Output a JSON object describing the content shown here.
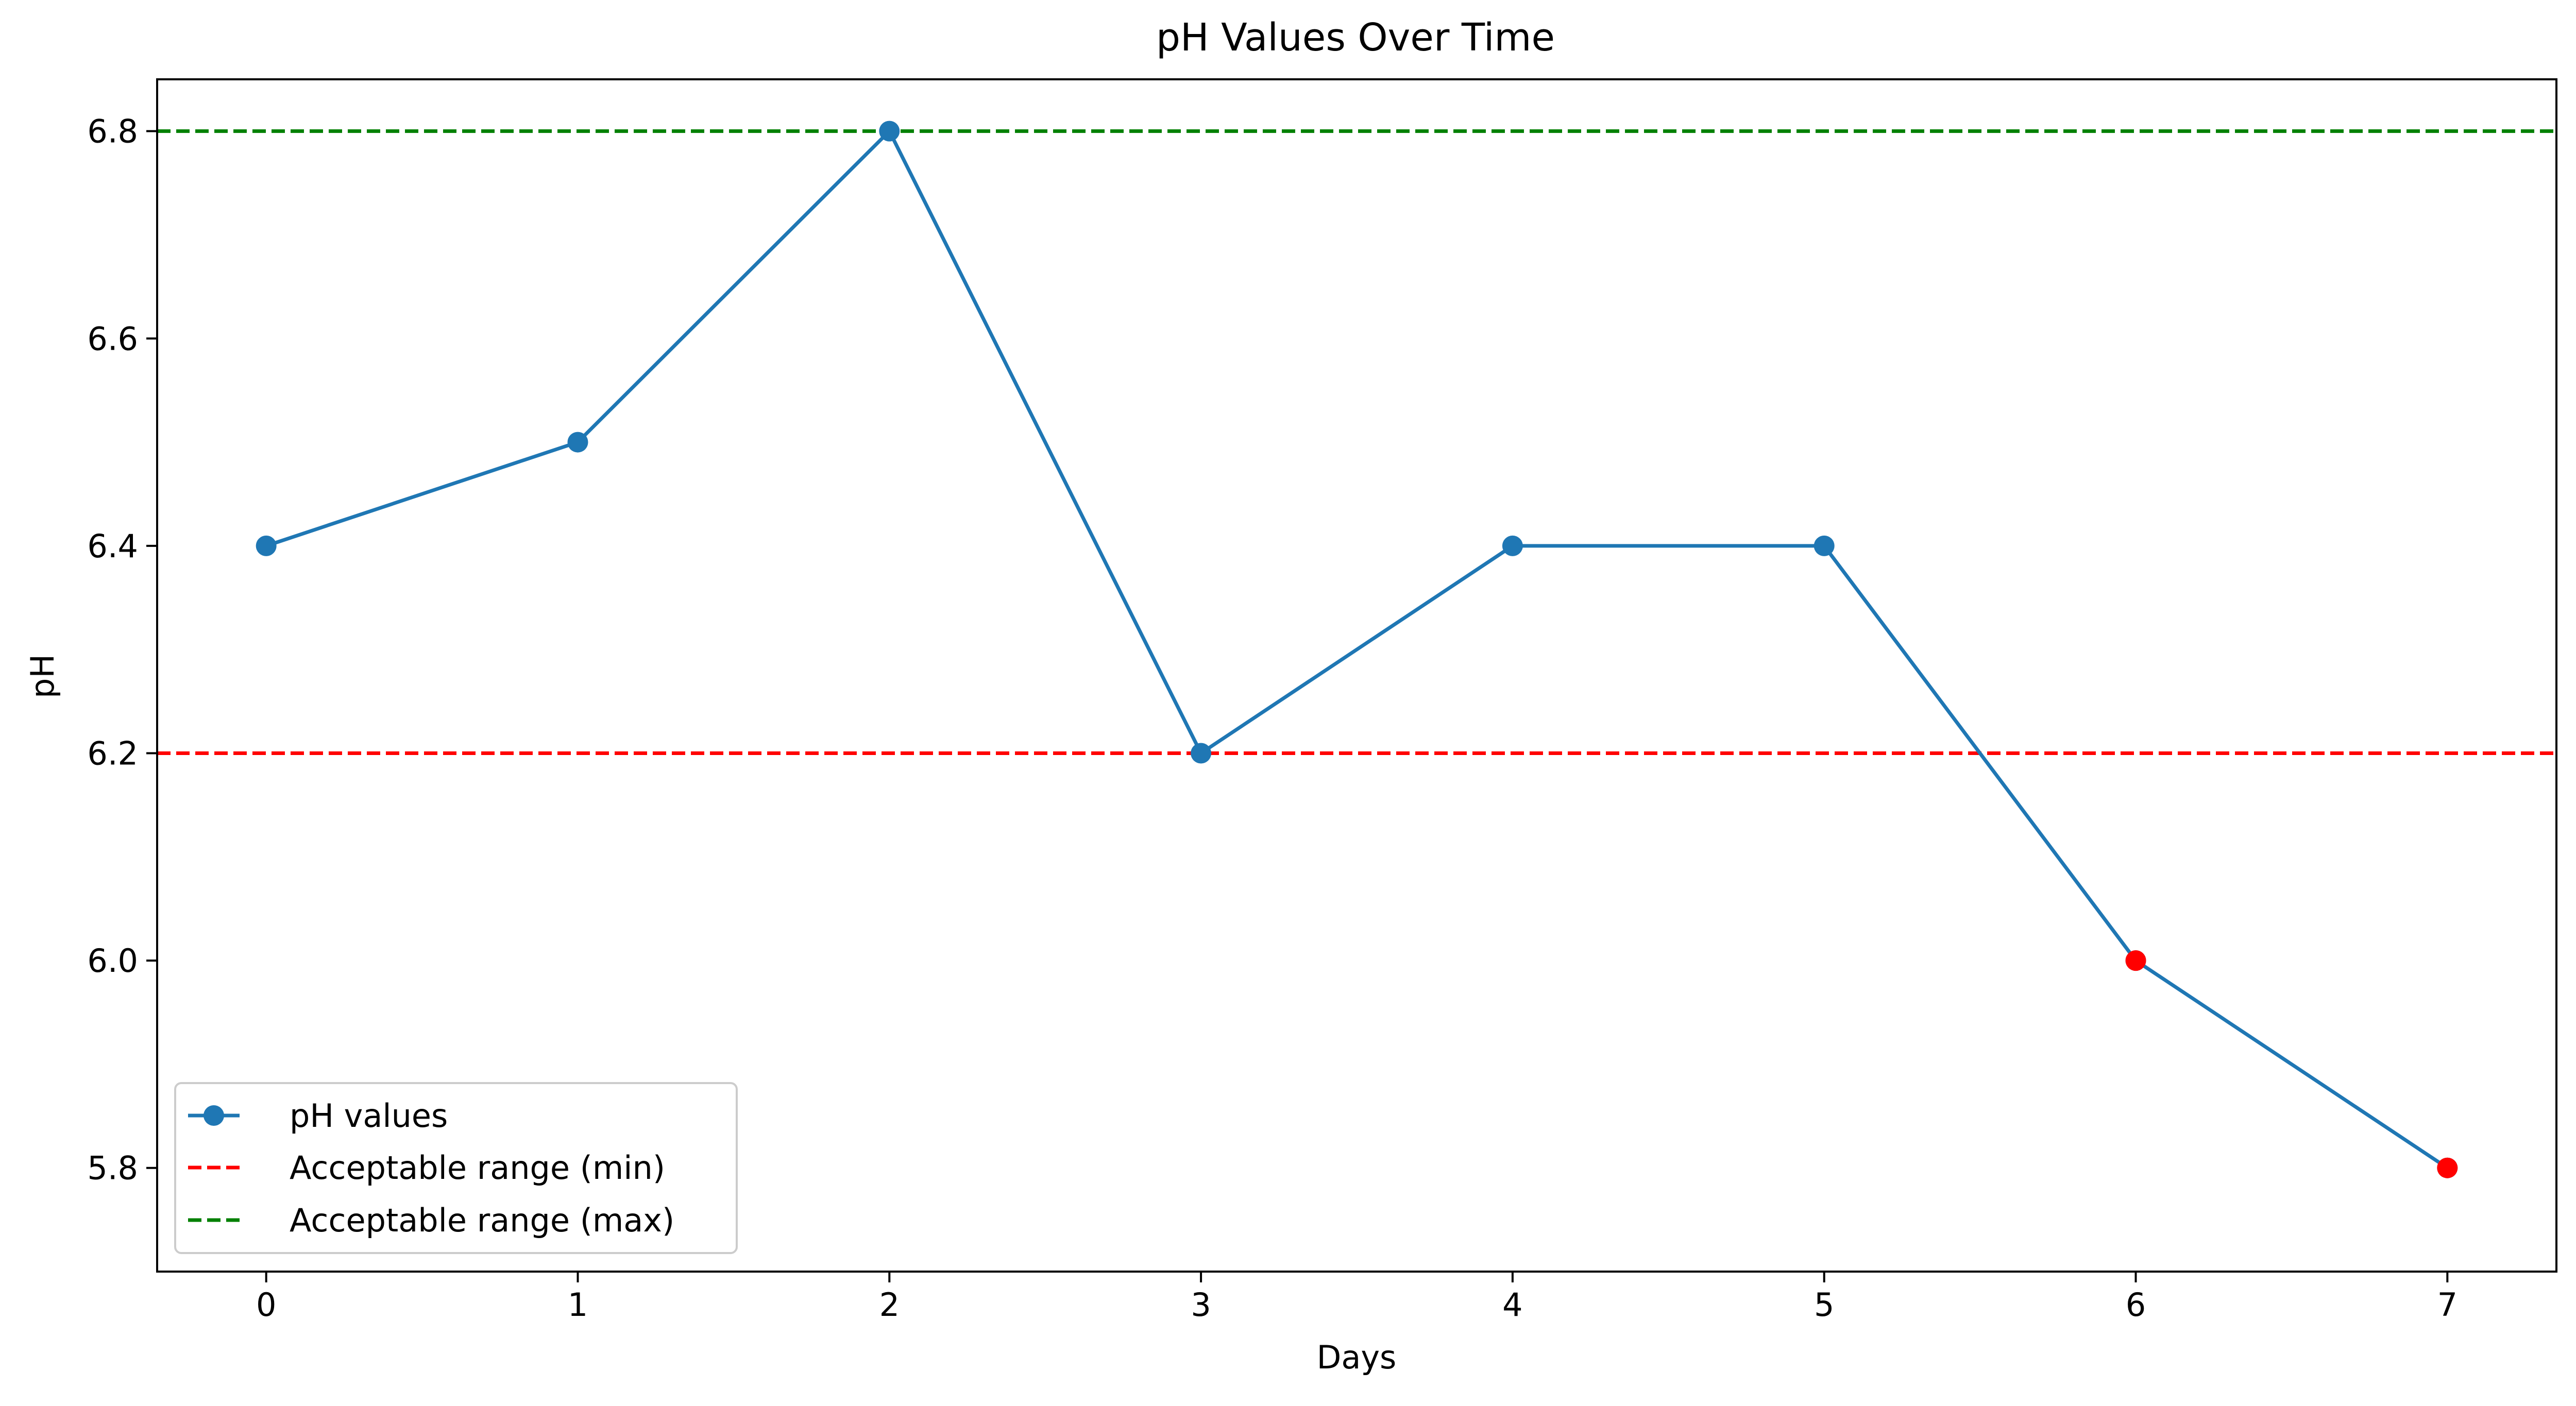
{
  "chart_data": {
    "type": "line",
    "title": "pH Values Over Time",
    "xlabel": "Days",
    "ylabel": "pH",
    "x": [
      0,
      1,
      2,
      3,
      4,
      5,
      6,
      7
    ],
    "xticks": [
      "0",
      "1",
      "2",
      "3",
      "4",
      "5",
      "6",
      "7"
    ],
    "yticks": [
      "5.8",
      "6.0",
      "6.2",
      "6.4",
      "6.6",
      "6.8"
    ],
    "xlim": [
      -0.35,
      7.35
    ],
    "ylim": [
      5.7,
      6.85
    ],
    "grid": false,
    "legend_position": "lower-left",
    "series": [
      {
        "name": "pH values",
        "values": [
          6.4,
          6.5,
          6.8,
          6.2,
          6.4,
          6.4,
          6.0,
          5.8
        ],
        "color": "#1f77b4",
        "marker": "circle"
      }
    ],
    "out_of_range_points": {
      "x": [
        6,
        7
      ],
      "values": [
        6.0,
        5.8
      ],
      "color": "#ff0000"
    },
    "reference_lines": [
      {
        "name": "Acceptable range (min)",
        "value": 6.2,
        "color": "#ff0000",
        "style": "dashed"
      },
      {
        "name": "Acceptable range (max)",
        "value": 6.8,
        "color": "#008000",
        "style": "dashed"
      }
    ]
  }
}
